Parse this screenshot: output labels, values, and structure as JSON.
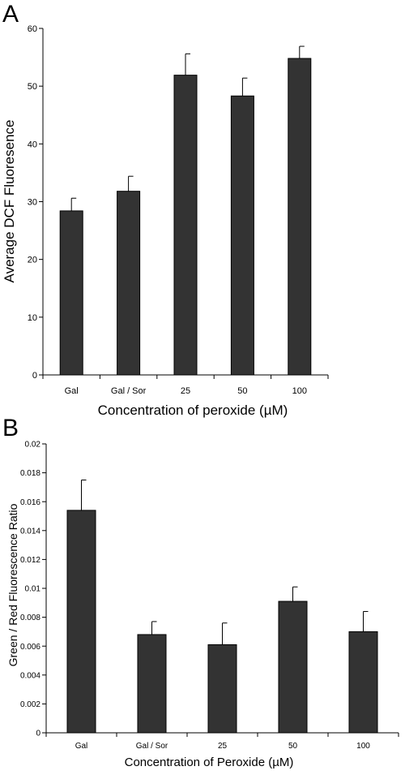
{
  "chart_data": [
    {
      "panel_label": "A",
      "type": "bar",
      "categories": [
        "Gal",
        "Gal / Sor",
        "25",
        "50",
        "100"
      ],
      "values": [
        28.4,
        31.8,
        51.9,
        48.3,
        54.8
      ],
      "errors": [
        2.2,
        2.6,
        3.7,
        3.1,
        2.1
      ],
      "xlabel": "Concentration of peroxide (µM)",
      "ylabel": "Average DCF Fluoresence",
      "ylim": [
        0,
        60
      ],
      "yticks": [
        0,
        10,
        20,
        30,
        40,
        50,
        60
      ],
      "ytick_labels": [
        "0",
        "10",
        "20",
        "30",
        "40",
        "50",
        "60"
      ],
      "bar_color": "#333333",
      "grid": false,
      "legend": "none"
    },
    {
      "panel_label": "B",
      "type": "bar",
      "categories": [
        "Gal",
        "Gal / Sor",
        "25",
        "50",
        "100"
      ],
      "values": [
        0.0154,
        0.0068,
        0.0061,
        0.0091,
        0.007
      ],
      "errors": [
        0.0021,
        0.0009,
        0.0015,
        0.001,
        0.0014
      ],
      "xlabel": "Concentration of Peroxide (µM)",
      "ylabel": "Green / Red Fluorescence Ratio",
      "ylim": [
        0,
        0.02
      ],
      "yticks": [
        0,
        0.002,
        0.004,
        0.006,
        0.008,
        0.01,
        0.012,
        0.014,
        0.016,
        0.018,
        0.02
      ],
      "ytick_labels": [
        "0",
        "0.002",
        "0.004",
        "0.006",
        "0.008",
        "0.01",
        "0.012",
        "0.014",
        "0.016",
        "0.018",
        "0.02"
      ],
      "bar_color": "#333333",
      "grid": false,
      "legend": "none"
    }
  ]
}
